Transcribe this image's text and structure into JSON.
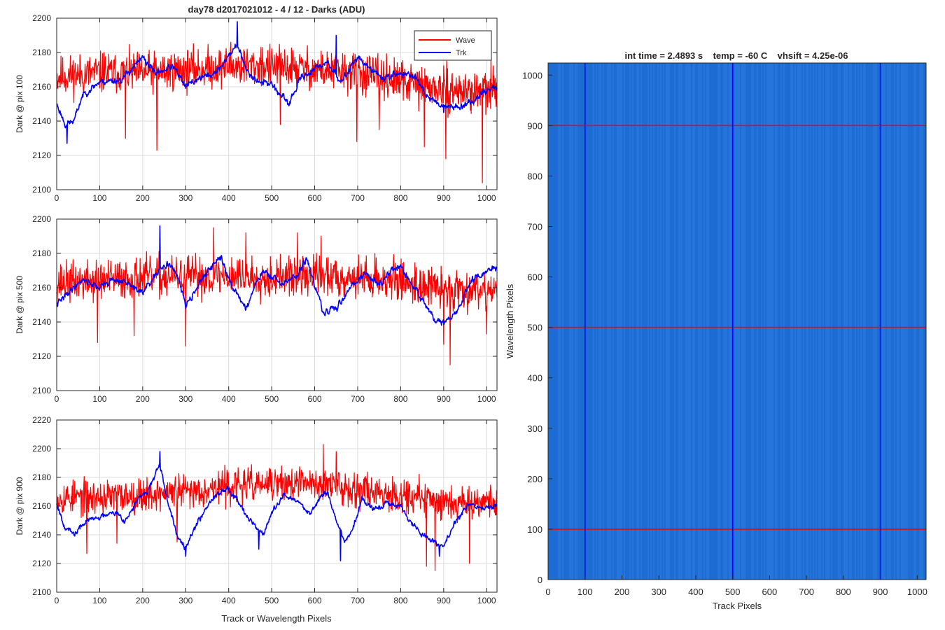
{
  "figure": {
    "title": "day78 d2017021012 - 4 / 12 - Darks (ADU)",
    "colors": {
      "wave": "#ff0000",
      "trk": "#0000ff",
      "heatmap_bg": "#1f6fd6",
      "grid": "#dcdcdc"
    }
  },
  "chart_data": [
    {
      "type": "line",
      "ylabel": "Dark @ pix 100",
      "xlim": [
        0,
        1024
      ],
      "ylim": [
        2100,
        2200
      ],
      "xticks": [
        0,
        100,
        200,
        300,
        400,
        500,
        600,
        700,
        800,
        900,
        1000
      ],
      "yticks": [
        2100,
        2120,
        2140,
        2160,
        2180,
        2200
      ],
      "grid": true,
      "legend": {
        "placement": "top-right",
        "entries": [
          "Wave",
          "Trk"
        ]
      },
      "series": [
        {
          "name": "Wave",
          "color": "#ff0000",
          "noise": 13,
          "seed": 11,
          "spikes": [
            [
              110,
              2180
            ],
            [
              160,
              2130
            ],
            [
              233,
              2123
            ],
            [
              405,
              2186
            ],
            [
              475,
              2183
            ],
            [
              520,
              2138
            ],
            [
              698,
              2128
            ],
            [
              750,
              2135
            ],
            [
              855,
              2125
            ],
            [
              905,
              2118
            ],
            [
              990,
              2104
            ],
            [
              1010,
              2178
            ]
          ],
          "anchors": [
            [
              0,
              2166
            ],
            [
              100,
              2168
            ],
            [
              200,
              2168
            ],
            [
              300,
              2170
            ],
            [
              400,
              2172
            ],
            [
              500,
              2172
            ],
            [
              600,
              2170
            ],
            [
              700,
              2168
            ],
            [
              800,
              2163
            ],
            [
              900,
              2158
            ],
            [
              1024,
              2157
            ]
          ]
        },
        {
          "name": "Trk",
          "color": "#0000ff",
          "noise": 4,
          "seed": 23,
          "spikes": [
            [
              24,
              2127
            ],
            [
              420,
              2198
            ],
            [
              650,
              2190
            ],
            [
              900,
              2145
            ]
          ],
          "anchors": [
            [
              0,
              2150
            ],
            [
              20,
              2138
            ],
            [
              40,
              2140
            ],
            [
              60,
              2155
            ],
            [
              100,
              2163
            ],
            [
              150,
              2164
            ],
            [
              180,
              2172
            ],
            [
              200,
              2177
            ],
            [
              230,
              2168
            ],
            [
              270,
              2172
            ],
            [
              300,
              2160
            ],
            [
              330,
              2165
            ],
            [
              370,
              2168
            ],
            [
              400,
              2178
            ],
            [
              420,
              2185
            ],
            [
              440,
              2170
            ],
            [
              470,
              2163
            ],
            [
              500,
              2162
            ],
            [
              520,
              2155
            ],
            [
              540,
              2150
            ],
            [
              570,
              2166
            ],
            [
              600,
              2170
            ],
            [
              630,
              2175
            ],
            [
              660,
              2162
            ],
            [
              680,
              2170
            ],
            [
              700,
              2178
            ],
            [
              720,
              2172
            ],
            [
              760,
              2165
            ],
            [
              800,
              2168
            ],
            [
              840,
              2165
            ],
            [
              860,
              2155
            ],
            [
              890,
              2150
            ],
            [
              920,
              2148
            ],
            [
              960,
              2150
            ],
            [
              990,
              2157
            ],
            [
              1024,
              2160
            ]
          ]
        }
      ]
    },
    {
      "type": "line",
      "ylabel": "Dark @ pix 500",
      "xlim": [
        0,
        1024
      ],
      "ylim": [
        2100,
        2200
      ],
      "xticks": [
        0,
        100,
        200,
        300,
        400,
        500,
        600,
        700,
        800,
        900,
        1000
      ],
      "yticks": [
        2100,
        2120,
        2140,
        2160,
        2180,
        2200
      ],
      "grid": true,
      "series": [
        {
          "name": "Wave",
          "color": "#ff0000",
          "noise": 13,
          "seed": 37,
          "spikes": [
            [
              95,
              2128
            ],
            [
              180,
              2132
            ],
            [
              300,
              2126
            ],
            [
              365,
              2195
            ],
            [
              440,
              2192
            ],
            [
              560,
              2192
            ],
            [
              615,
              2190
            ],
            [
              900,
              2127
            ],
            [
              915,
              2115
            ],
            [
              1000,
              2133
            ]
          ],
          "anchors": [
            [
              0,
              2163
            ],
            [
              100,
              2164
            ],
            [
              200,
              2166
            ],
            [
              300,
              2166
            ],
            [
              400,
              2167
            ],
            [
              500,
              2166
            ],
            [
              600,
              2167
            ],
            [
              700,
              2166
            ],
            [
              800,
              2164
            ],
            [
              900,
              2159
            ],
            [
              1024,
              2160
            ]
          ]
        },
        {
          "name": "Trk",
          "color": "#0000ff",
          "noise": 4,
          "seed": 41,
          "spikes": [
            [
              240,
              2196
            ],
            [
              930,
              2145
            ]
          ],
          "anchors": [
            [
              0,
              2150
            ],
            [
              30,
              2158
            ],
            [
              60,
              2165
            ],
            [
              100,
              2160
            ],
            [
              130,
              2165
            ],
            [
              160,
              2163
            ],
            [
              200,
              2157
            ],
            [
              230,
              2167
            ],
            [
              260,
              2175
            ],
            [
              280,
              2167
            ],
            [
              300,
              2150
            ],
            [
              330,
              2162
            ],
            [
              360,
              2172
            ],
            [
              380,
              2178
            ],
            [
              410,
              2160
            ],
            [
              440,
              2148
            ],
            [
              460,
              2160
            ],
            [
              480,
              2170
            ],
            [
              520,
              2162
            ],
            [
              560,
              2167
            ],
            [
              580,
              2177
            ],
            [
              600,
              2162
            ],
            [
              620,
              2145
            ],
            [
              650,
              2148
            ],
            [
              690,
              2163
            ],
            [
              720,
              2168
            ],
            [
              750,
              2162
            ],
            [
              780,
              2170
            ],
            [
              800,
              2172
            ],
            [
              830,
              2160
            ],
            [
              860,
              2150
            ],
            [
              880,
              2140
            ],
            [
              910,
              2140
            ],
            [
              940,
              2150
            ],
            [
              960,
              2163
            ],
            [
              990,
              2168
            ],
            [
              1024,
              2172
            ]
          ]
        }
      ]
    },
    {
      "type": "line",
      "ylabel": "Dark @ pix 900",
      "xlabel": "Track or Wavelength Pixels",
      "xlim": [
        0,
        1024
      ],
      "ylim": [
        2100,
        2220
      ],
      "xticks": [
        0,
        100,
        200,
        300,
        400,
        500,
        600,
        700,
        800,
        900,
        1000
      ],
      "yticks": [
        2100,
        2120,
        2140,
        2160,
        2180,
        2200,
        2220
      ],
      "grid": true,
      "series": [
        {
          "name": "Wave",
          "color": "#ff0000",
          "noise": 13,
          "seed": 53,
          "spikes": [
            [
              70,
              2127
            ],
            [
              140,
              2134
            ],
            [
              280,
              2135
            ],
            [
              620,
              2203
            ],
            [
              650,
              2198
            ],
            [
              860,
              2118
            ],
            [
              880,
              2115
            ],
            [
              960,
              2120
            ]
          ],
          "anchors": [
            [
              0,
              2166
            ],
            [
              100,
              2166
            ],
            [
              200,
              2168
            ],
            [
              300,
              2170
            ],
            [
              400,
              2174
            ],
            [
              500,
              2175
            ],
            [
              600,
              2176
            ],
            [
              700,
              2172
            ],
            [
              800,
              2168
            ],
            [
              900,
              2163
            ],
            [
              1024,
              2164
            ]
          ]
        },
        {
          "name": "Trk",
          "color": "#0000ff",
          "noise": 4,
          "seed": 67,
          "spikes": [
            [
              240,
              2198
            ],
            [
              300,
              2125
            ],
            [
              470,
              2130
            ],
            [
              660,
              2122
            ],
            [
              890,
              2125
            ]
          ],
          "anchors": [
            [
              0,
              2162
            ],
            [
              20,
              2145
            ],
            [
              40,
              2140
            ],
            [
              70,
              2150
            ],
            [
              100,
              2152
            ],
            [
              130,
              2157
            ],
            [
              160,
              2150
            ],
            [
              190,
              2165
            ],
            [
              210,
              2170
            ],
            [
              240,
              2188
            ],
            [
              260,
              2160
            ],
            [
              280,
              2140
            ],
            [
              300,
              2132
            ],
            [
              330,
              2150
            ],
            [
              360,
              2165
            ],
            [
              380,
              2170
            ],
            [
              400,
              2172
            ],
            [
              420,
              2165
            ],
            [
              450,
              2150
            ],
            [
              480,
              2140
            ],
            [
              500,
              2155
            ],
            [
              530,
              2168
            ],
            [
              560,
              2163
            ],
            [
              590,
              2155
            ],
            [
              610,
              2165
            ],
            [
              630,
              2170
            ],
            [
              650,
              2150
            ],
            [
              670,
              2135
            ],
            [
              690,
              2145
            ],
            [
              710,
              2165
            ],
            [
              740,
              2157
            ],
            [
              770,
              2162
            ],
            [
              800,
              2160
            ],
            [
              820,
              2150
            ],
            [
              850,
              2140
            ],
            [
              880,
              2135
            ],
            [
              900,
              2132
            ],
            [
              930,
              2150
            ],
            [
              960,
              2162
            ],
            [
              990,
              2158
            ],
            [
              1024,
              2160
            ]
          ]
        }
      ]
    },
    {
      "type": "heatmap",
      "title": "int time = 2.4893 s    temp = -60 C    vhsift = 4.25e-06",
      "xlabel": "Track Pixels",
      "ylabel": "Wavelength Pixels",
      "xlim": [
        0,
        1024
      ],
      "ylim": [
        0,
        1024
      ],
      "xticks": [
        0,
        100,
        200,
        300,
        400,
        500,
        600,
        700,
        800,
        900,
        1000
      ],
      "yticks": [
        0,
        100,
        200,
        300,
        400,
        500,
        600,
        700,
        800,
        900,
        1000
      ],
      "base_color": "#1f6fd6",
      "vertical_lines": {
        "color": "#0000ff",
        "x": [
          100,
          500,
          900
        ]
      },
      "horizontal_lines": {
        "color": "#ff0000",
        "y": [
          100,
          500,
          900
        ]
      }
    }
  ]
}
